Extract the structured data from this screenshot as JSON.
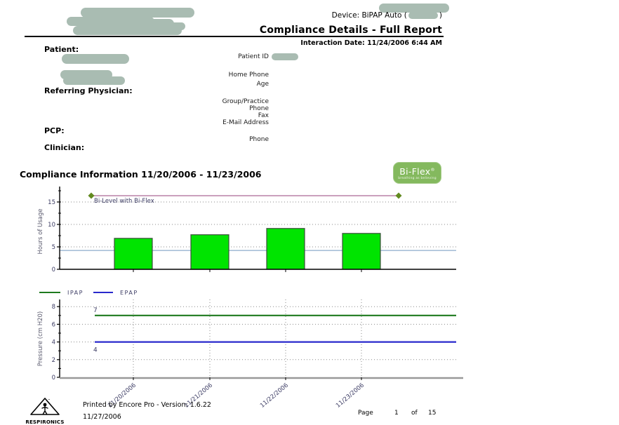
{
  "header": {
    "device_prefix": "Device: BiPAP Auto (",
    "device_suffix": ")",
    "title": "Compliance Details - Full Report",
    "interaction_date": "Interaction Date: 11/24/2006 6:44 AM"
  },
  "patient_section": {
    "patient_label": "Patient:",
    "referring_physician_label": "Referring Physician:",
    "pcp_label": "PCP:",
    "clinician_label": "Clinician:",
    "fields": {
      "patient_id": "Patient ID",
      "home_phone": "Home Phone",
      "age": "Age",
      "group_practice": "Group/Practice",
      "phone": "Phone",
      "fax": "Fax",
      "email": "E-Mail Address",
      "pcp_phone": "Phone"
    }
  },
  "compliance": {
    "section_title": "Compliance Information 11/20/2006 - 11/23/2006",
    "logo": {
      "name": "Bi-Flex",
      "reg": "®",
      "tagline": "breathing as believing"
    }
  },
  "chart_data": [
    {
      "type": "bar",
      "ylabel": "Hours of Usage",
      "categories": [
        "11/20/2006",
        "11/21/2006",
        "11/22/2006",
        "11/23/2006"
      ],
      "values": [
        6.9,
        7.7,
        9.1,
        8.0
      ],
      "ylim": [
        0,
        17.5
      ],
      "yticks": [
        0,
        5,
        10,
        15
      ],
      "bar_color": "#00e400",
      "bar_border": "#3d4d3d",
      "grid": "dotted",
      "annotations": {
        "mode_line": {
          "label": "Bi-Level with Bi-Flex",
          "y": 16.4,
          "color": "#c79ab8",
          "marker_color": "#628a1f"
        },
        "threshold_line": {
          "y": 4.2,
          "color": "#8caccc"
        }
      }
    },
    {
      "type": "line",
      "ylabel": "Pressure (cm H20)",
      "x": [
        "11/20/2006",
        "11/21/2006",
        "11/22/2006",
        "11/23/2006"
      ],
      "series": [
        {
          "name": "IPAP",
          "value": 7,
          "label": "7",
          "color": "#1e7a1e"
        },
        {
          "name": "EPAP",
          "value": 4,
          "label": "4",
          "color": "#2929cc"
        }
      ],
      "ylim": [
        0,
        8.8
      ],
      "yticks": [
        0,
        2,
        4,
        6,
        8
      ],
      "legend_position": "top-left",
      "grid": "dotted"
    }
  ],
  "footer": {
    "logo_text": "RESPIRONICS",
    "printed_by": "Printed by Encore Pro - Version: 1.6.22",
    "print_date": "11/27/2006",
    "page_label": "Page",
    "page_number": "1",
    "of_label": "of",
    "page_total": "15"
  },
  "colors": {
    "redaction": "#a9bcb2",
    "accent_green": "#84b95e",
    "tick_label": "#3c3c64",
    "axis_label": "#5a5a6e"
  }
}
